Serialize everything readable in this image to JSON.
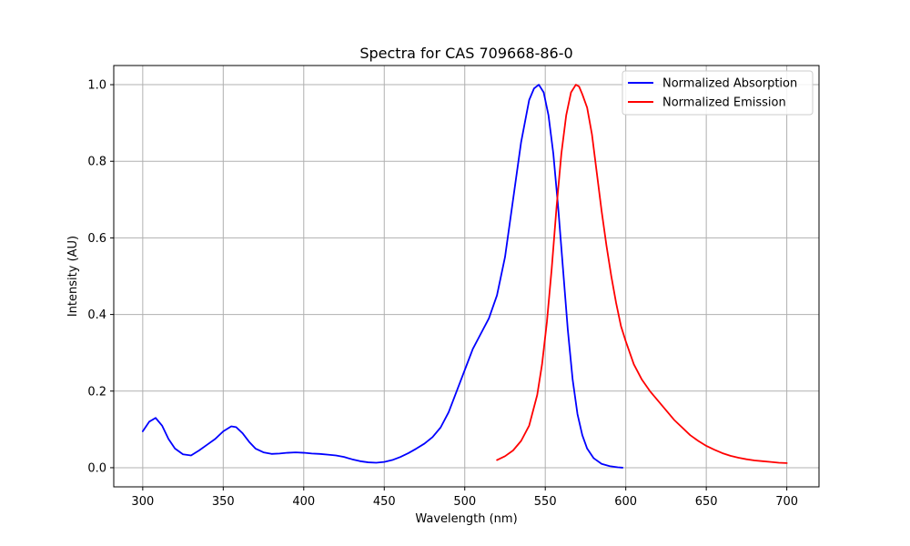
{
  "chart_data": {
    "type": "line",
    "title": "Spectra for CAS 709668-86-0",
    "xlabel": "Wavelength (nm)",
    "ylabel": "Intensity (AU)",
    "xlim": [
      282,
      720
    ],
    "ylim": [
      -0.05,
      1.05
    ],
    "xticks": [
      300,
      350,
      400,
      450,
      500,
      550,
      600,
      650,
      700
    ],
    "yticks": [
      0.0,
      0.2,
      0.4,
      0.6,
      0.8,
      1.0
    ],
    "grid": true,
    "legend_position": "top-right",
    "series": [
      {
        "name": "Normalized Absorption",
        "color": "#0000ff",
        "x": [
          300,
          304,
          308,
          312,
          316,
          320,
          325,
          330,
          335,
          340,
          345,
          350,
          355,
          358,
          362,
          366,
          370,
          375,
          380,
          385,
          390,
          395,
          400,
          405,
          410,
          415,
          420,
          425,
          430,
          435,
          440,
          445,
          450,
          455,
          460,
          465,
          470,
          475,
          480,
          485,
          490,
          495,
          500,
          505,
          510,
          515,
          520,
          525,
          530,
          535,
          540,
          543,
          546,
          549,
          552,
          555,
          558,
          561,
          564,
          567,
          570,
          573,
          576,
          580,
          585,
          590,
          595,
          598
        ],
        "y": [
          0.095,
          0.12,
          0.13,
          0.11,
          0.075,
          0.05,
          0.035,
          0.032,
          0.045,
          0.06,
          0.075,
          0.095,
          0.108,
          0.106,
          0.09,
          0.068,
          0.05,
          0.04,
          0.036,
          0.037,
          0.039,
          0.04,
          0.039,
          0.037,
          0.036,
          0.034,
          0.032,
          0.028,
          0.022,
          0.017,
          0.014,
          0.013,
          0.015,
          0.02,
          0.028,
          0.038,
          0.05,
          0.063,
          0.08,
          0.105,
          0.145,
          0.2,
          0.255,
          0.31,
          0.35,
          0.39,
          0.45,
          0.55,
          0.7,
          0.85,
          0.96,
          0.99,
          1.0,
          0.98,
          0.92,
          0.82,
          0.68,
          0.52,
          0.36,
          0.23,
          0.14,
          0.085,
          0.05,
          0.025,
          0.01,
          0.004,
          0.001,
          0.0
        ]
      },
      {
        "name": "Normalized Emission",
        "color": "#ff0000",
        "x": [
          520,
          525,
          530,
          535,
          540,
          545,
          548,
          551,
          554,
          557,
          560,
          563,
          566,
          569,
          571,
          573,
          576,
          579,
          582,
          585,
          588,
          591,
          594,
          597,
          600,
          605,
          610,
          615,
          620,
          625,
          630,
          635,
          640,
          645,
          650,
          655,
          660,
          665,
          670,
          675,
          680,
          685,
          690,
          695,
          700
        ],
        "y": [
          0.02,
          0.03,
          0.045,
          0.07,
          0.11,
          0.19,
          0.27,
          0.38,
          0.52,
          0.68,
          0.82,
          0.92,
          0.98,
          1.0,
          0.995,
          0.975,
          0.94,
          0.87,
          0.77,
          0.67,
          0.58,
          0.5,
          0.43,
          0.37,
          0.33,
          0.27,
          0.23,
          0.2,
          0.175,
          0.15,
          0.125,
          0.105,
          0.085,
          0.07,
          0.057,
          0.047,
          0.038,
          0.031,
          0.026,
          0.022,
          0.019,
          0.017,
          0.015,
          0.013,
          0.012
        ]
      }
    ]
  }
}
